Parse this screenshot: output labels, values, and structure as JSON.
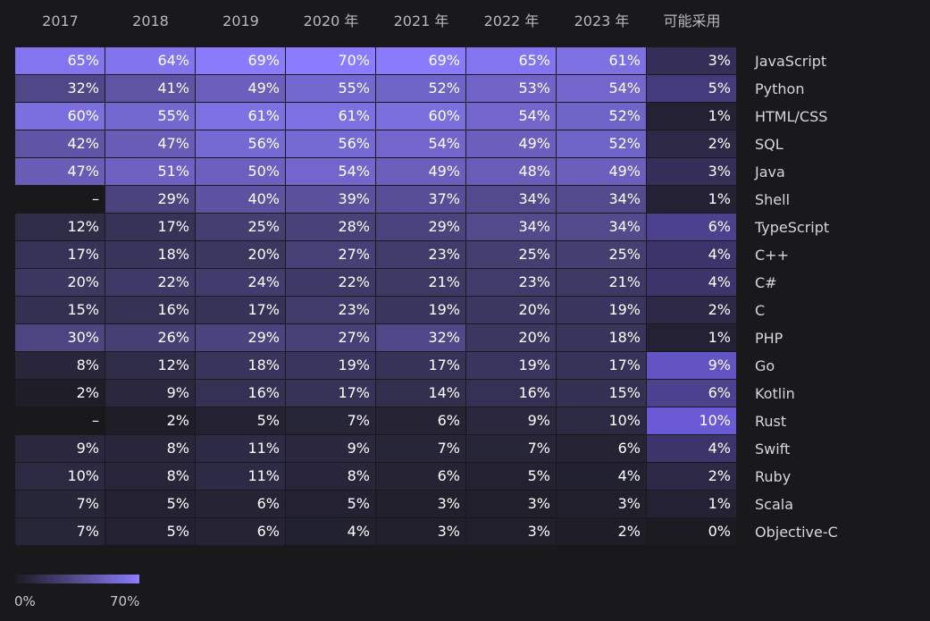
{
  "chart_data": {
    "type": "heatmap",
    "columns": [
      "2017",
      "2018",
      "2019",
      "2020 年",
      "2021 年",
      "2022 年",
      "2023 年",
      "可能采用"
    ],
    "rows": [
      {
        "language": "JavaScript",
        "values": [
          "65%",
          "64%",
          "69%",
          "70%",
          "69%",
          "65%",
          "61%",
          "3%"
        ]
      },
      {
        "language": "Python",
        "values": [
          "32%",
          "41%",
          "49%",
          "55%",
          "52%",
          "53%",
          "54%",
          "5%"
        ]
      },
      {
        "language": "HTML/CSS",
        "values": [
          "60%",
          "55%",
          "61%",
          "61%",
          "60%",
          "54%",
          "52%",
          "1%"
        ]
      },
      {
        "language": "SQL",
        "values": [
          "42%",
          "47%",
          "56%",
          "56%",
          "54%",
          "49%",
          "52%",
          "2%"
        ]
      },
      {
        "language": "Java",
        "values": [
          "47%",
          "51%",
          "50%",
          "54%",
          "49%",
          "48%",
          "49%",
          "3%"
        ]
      },
      {
        "language": "Shell",
        "values": [
          "–",
          "29%",
          "40%",
          "39%",
          "37%",
          "34%",
          "34%",
          "1%"
        ]
      },
      {
        "language": "TypeScript",
        "values": [
          "12%",
          "17%",
          "25%",
          "28%",
          "29%",
          "34%",
          "34%",
          "6%"
        ]
      },
      {
        "language": "C++",
        "values": [
          "17%",
          "18%",
          "20%",
          "27%",
          "23%",
          "25%",
          "25%",
          "4%"
        ]
      },
      {
        "language": "C#",
        "values": [
          "20%",
          "22%",
          "24%",
          "22%",
          "21%",
          "23%",
          "21%",
          "4%"
        ]
      },
      {
        "language": "C",
        "values": [
          "15%",
          "16%",
          "17%",
          "23%",
          "19%",
          "20%",
          "19%",
          "2%"
        ]
      },
      {
        "language": "PHP",
        "values": [
          "30%",
          "26%",
          "29%",
          "27%",
          "32%",
          "20%",
          "18%",
          "1%"
        ]
      },
      {
        "language": "Go",
        "values": [
          "8%",
          "12%",
          "18%",
          "19%",
          "17%",
          "19%",
          "17%",
          "9%"
        ]
      },
      {
        "language": "Kotlin",
        "values": [
          "2%",
          "9%",
          "16%",
          "17%",
          "14%",
          "16%",
          "15%",
          "6%"
        ]
      },
      {
        "language": "Rust",
        "values": [
          "–",
          "2%",
          "5%",
          "7%",
          "6%",
          "9%",
          "10%",
          "10%"
        ]
      },
      {
        "language": "Swift",
        "values": [
          "9%",
          "8%",
          "11%",
          "9%",
          "7%",
          "7%",
          "6%",
          "4%"
        ]
      },
      {
        "language": "Ruby",
        "values": [
          "10%",
          "8%",
          "11%",
          "8%",
          "6%",
          "5%",
          "4%",
          "2%"
        ]
      },
      {
        "language": "Scala",
        "values": [
          "7%",
          "5%",
          "6%",
          "5%",
          "3%",
          "3%",
          "3%",
          "1%"
        ]
      },
      {
        "language": "Objective-C",
        "values": [
          "7%",
          "5%",
          "6%",
          "4%",
          "3%",
          "3%",
          "2%",
          "0%"
        ]
      }
    ],
    "scale": {
      "min_label": "0%",
      "max_label": "70%",
      "min": 0,
      "max": 70
    },
    "colors": {
      "background": "#19191b",
      "low": "#1c1b22",
      "high": "#8b7cff",
      "likely_low": "#1c1b22",
      "likely_high": "#6b5ad6",
      "empty": "#19191b"
    }
  }
}
